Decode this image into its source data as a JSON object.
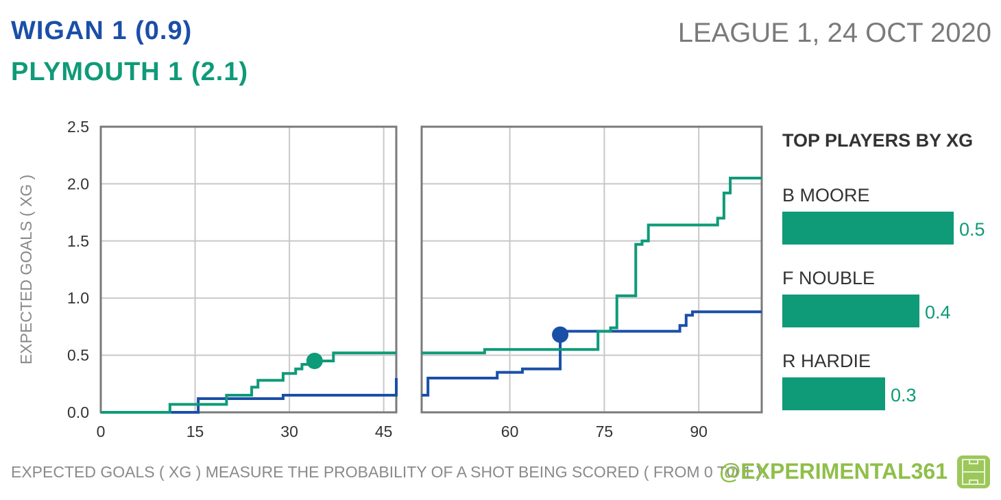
{
  "header": {
    "home": "WIGAN  1  (0.9)",
    "away": "PLYMOUTH  1  (2.1)",
    "match_info": "LEAGUE 1, 24 OCT 2020"
  },
  "footer": {
    "note": "EXPECTED GOALS ( XG ) MEASURE THE PROBABILITY  OF A SHOT BEING SCORED ( FROM 0 TO 1 ).",
    "handle": "@EXPERIMENTAL361",
    "logo_icon": "pitch-icon"
  },
  "colors": {
    "home": "#1a4fa8",
    "away": "#0f9a78",
    "grid": "#c8c8c8",
    "frame": "#7a7a7a"
  },
  "chart_data": [
    {
      "type": "line",
      "step": true,
      "xlabel": "",
      "ylabel": "EXPECTED GOALS ( XG )",
      "ylim": [
        0,
        2.5
      ],
      "yticks": [
        "0.0",
        "0.5",
        "1.0",
        "1.5",
        "2.0",
        "2.5"
      ],
      "grid": true,
      "panels": [
        {
          "xlim": [
            0,
            47
          ],
          "xticks": [
            0,
            15,
            30,
            45
          ]
        },
        {
          "xlim": [
            46,
            100
          ],
          "xticks": [
            60,
            75,
            90
          ]
        }
      ],
      "series": [
        {
          "name": "Wigan",
          "color": "#1a4fa8",
          "points": [
            [
              0,
              0
            ],
            [
              15.5,
              0.12
            ],
            [
              29,
              0.15
            ],
            [
              47,
              0.3
            ],
            [
              50,
              0.3
            ],
            [
              58,
              0.35
            ],
            [
              62,
              0.38
            ],
            [
              68,
              0.69
            ],
            [
              69,
              0.71
            ],
            [
              87,
              0.76
            ],
            [
              88,
              0.85
            ],
            [
              89,
              0.88
            ],
            [
              100,
              0.88
            ]
          ],
          "goals": [
            [
              68,
              0.68
            ]
          ]
        },
        {
          "name": "Plymouth",
          "color": "#0f9a78",
          "points": [
            [
              0,
              0
            ],
            [
              11,
              0.07
            ],
            [
              20,
              0.15
            ],
            [
              24,
              0.22
            ],
            [
              25,
              0.28
            ],
            [
              29,
              0.34
            ],
            [
              31,
              0.38
            ],
            [
              32,
              0.42
            ],
            [
              34,
              0.45
            ],
            [
              37,
              0.52
            ],
            [
              47,
              0.52
            ],
            [
              56,
              0.55
            ],
            [
              74,
              0.71
            ],
            [
              76,
              0.74
            ],
            [
              77,
              1.02
            ],
            [
              80,
              1.47
            ],
            [
              81,
              1.5
            ],
            [
              82,
              1.64
            ],
            [
              93,
              1.7
            ],
            [
              94,
              1.92
            ],
            [
              95,
              2.05
            ],
            [
              100,
              2.05
            ]
          ],
          "goals": [
            [
              34,
              0.45
            ]
          ]
        }
      ]
    },
    {
      "type": "bar",
      "orientation": "horizontal",
      "title": "TOP PLAYERS BY XG",
      "categories": [
        "B MOORE",
        "F NOUBLE",
        "R HARDIE"
      ],
      "values": [
        0.5,
        0.4,
        0.3
      ],
      "labels": [
        "0.5",
        "0.4",
        "0.3"
      ],
      "color": "#0f9a78"
    }
  ]
}
